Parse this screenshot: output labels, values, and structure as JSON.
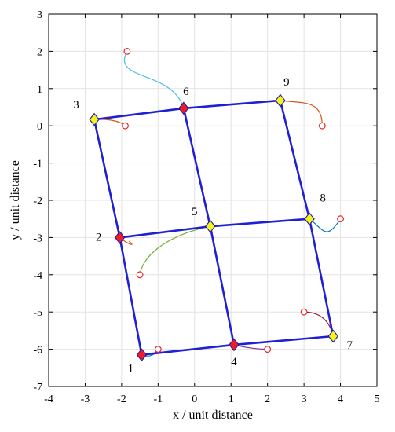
{
  "chart_data": {
    "type": "scatter",
    "title": "",
    "xlabel": "x / unit distance",
    "ylabel": "y / unit distance",
    "xlim": [
      -4,
      5
    ],
    "ylim": [
      -7,
      3
    ],
    "xticks": [
      "-4",
      "-3",
      "-2",
      "-1",
      "0",
      "1",
      "2",
      "3",
      "4",
      "5"
    ],
    "yticks": [
      "-7",
      "-6",
      "-5",
      "-4",
      "-3",
      "-2",
      "-1",
      "0",
      "1",
      "2",
      "3"
    ],
    "grid": true,
    "edge_color": "#1f1fd6",
    "nodes": [
      {
        "id": "1",
        "x": -1.45,
        "y": -6.15,
        "marker": "red",
        "start": {
          "x": -1.0,
          "y": -6.0
        },
        "path_color": "#1f77b4"
      },
      {
        "id": "2",
        "x": -2.05,
        "y": -3.0,
        "marker": "red",
        "start": null,
        "path_color": "#d95319"
      },
      {
        "id": "3",
        "x": -2.75,
        "y": 0.17,
        "marker": "yellow",
        "start": {
          "x": -1.9,
          "y": 0.0
        },
        "path_color": "#d95319"
      },
      {
        "id": "4",
        "x": 1.08,
        "y": -5.88,
        "marker": "red",
        "start": {
          "x": 2.0,
          "y": -6.0
        },
        "path_color": "#7e2f8e"
      },
      {
        "id": "5",
        "x": 0.43,
        "y": -2.7,
        "marker": "yellow",
        "start": {
          "x": -1.5,
          "y": -4.0
        },
        "path_color": "#77ac30"
      },
      {
        "id": "6",
        "x": -0.3,
        "y": 0.47,
        "marker": "red",
        "start": {
          "x": -1.85,
          "y": 2.0
        },
        "path_color": "#4dbeee"
      },
      {
        "id": "7",
        "x": 3.8,
        "y": -5.65,
        "marker": "yellow",
        "start": {
          "x": 3.0,
          "y": -5.0
        },
        "path_color": "#a2142f"
      },
      {
        "id": "8",
        "x": 3.15,
        "y": -2.5,
        "marker": "yellow",
        "start": {
          "x": 4.0,
          "y": -2.5
        },
        "path_color": "#0072bd"
      },
      {
        "id": "9",
        "x": 2.35,
        "y": 0.68,
        "marker": "yellow",
        "start": {
          "x": 3.5,
          "y": 0.0
        },
        "path_color": "#d95319"
      }
    ],
    "edges": [
      [
        "3",
        "6"
      ],
      [
        "6",
        "9"
      ],
      [
        "2",
        "5"
      ],
      [
        "5",
        "8"
      ],
      [
        "1",
        "4"
      ],
      [
        "4",
        "7"
      ],
      [
        "3",
        "2"
      ],
      [
        "2",
        "1"
      ],
      [
        "6",
        "5"
      ],
      [
        "5",
        "4"
      ],
      [
        "9",
        "8"
      ],
      [
        "8",
        "7"
      ]
    ],
    "paths": [
      {
        "node": "1",
        "color": "#1f77b4",
        "points": [
          [
            -1.45,
            -6.15
          ],
          [
            -1.2,
            -6.25
          ],
          [
            -1.05,
            -6.1
          ],
          [
            -1.0,
            -6.0
          ]
        ]
      },
      {
        "node": "2",
        "color": "#d95319",
        "points": [
          [
            -2.05,
            -3.0
          ],
          [
            -1.8,
            -3.2
          ],
          [
            -1.6,
            -3.25
          ],
          [
            -1.8,
            -3.1
          ]
        ]
      },
      {
        "node": "3",
        "color": "#d95319",
        "points": [
          [
            -2.75,
            0.17
          ],
          [
            -2.3,
            0.2
          ],
          [
            -2.0,
            0.1
          ],
          [
            -1.9,
            0.0
          ]
        ]
      },
      {
        "node": "4",
        "color": "#7e2f8e",
        "points": [
          [
            1.08,
            -5.88
          ],
          [
            0.8,
            -5.8
          ],
          [
            1.4,
            -6.0
          ],
          [
            2.0,
            -6.0
          ]
        ]
      },
      {
        "node": "5",
        "color": "#77ac30",
        "points": [
          [
            0.43,
            -2.7
          ],
          [
            -0.6,
            -2.9
          ],
          [
            -1.4,
            -3.4
          ],
          [
            -1.5,
            -4.0
          ]
        ]
      },
      {
        "node": "6",
        "color": "#4dbeee",
        "points": [
          [
            -0.3,
            0.47
          ],
          [
            -0.6,
            1.5
          ],
          [
            -2.3,
            1.2
          ],
          [
            -1.85,
            2.0
          ]
        ]
      },
      {
        "node": "7",
        "color": "#a2142f",
        "points": [
          [
            3.8,
            -5.65
          ],
          [
            3.7,
            -5.2
          ],
          [
            3.4,
            -5.0
          ],
          [
            3.0,
            -5.0
          ]
        ]
      },
      {
        "node": "8",
        "color": "#0072bd",
        "points": [
          [
            3.15,
            -2.5
          ],
          [
            3.55,
            -2.8
          ],
          [
            3.6,
            -3.1
          ],
          [
            4.0,
            -2.5
          ]
        ]
      },
      {
        "node": "9",
        "color": "#d95319",
        "points": [
          [
            2.35,
            0.68
          ],
          [
            3.0,
            0.6
          ],
          [
            3.5,
            0.7
          ],
          [
            3.5,
            0.0
          ]
        ]
      }
    ]
  }
}
